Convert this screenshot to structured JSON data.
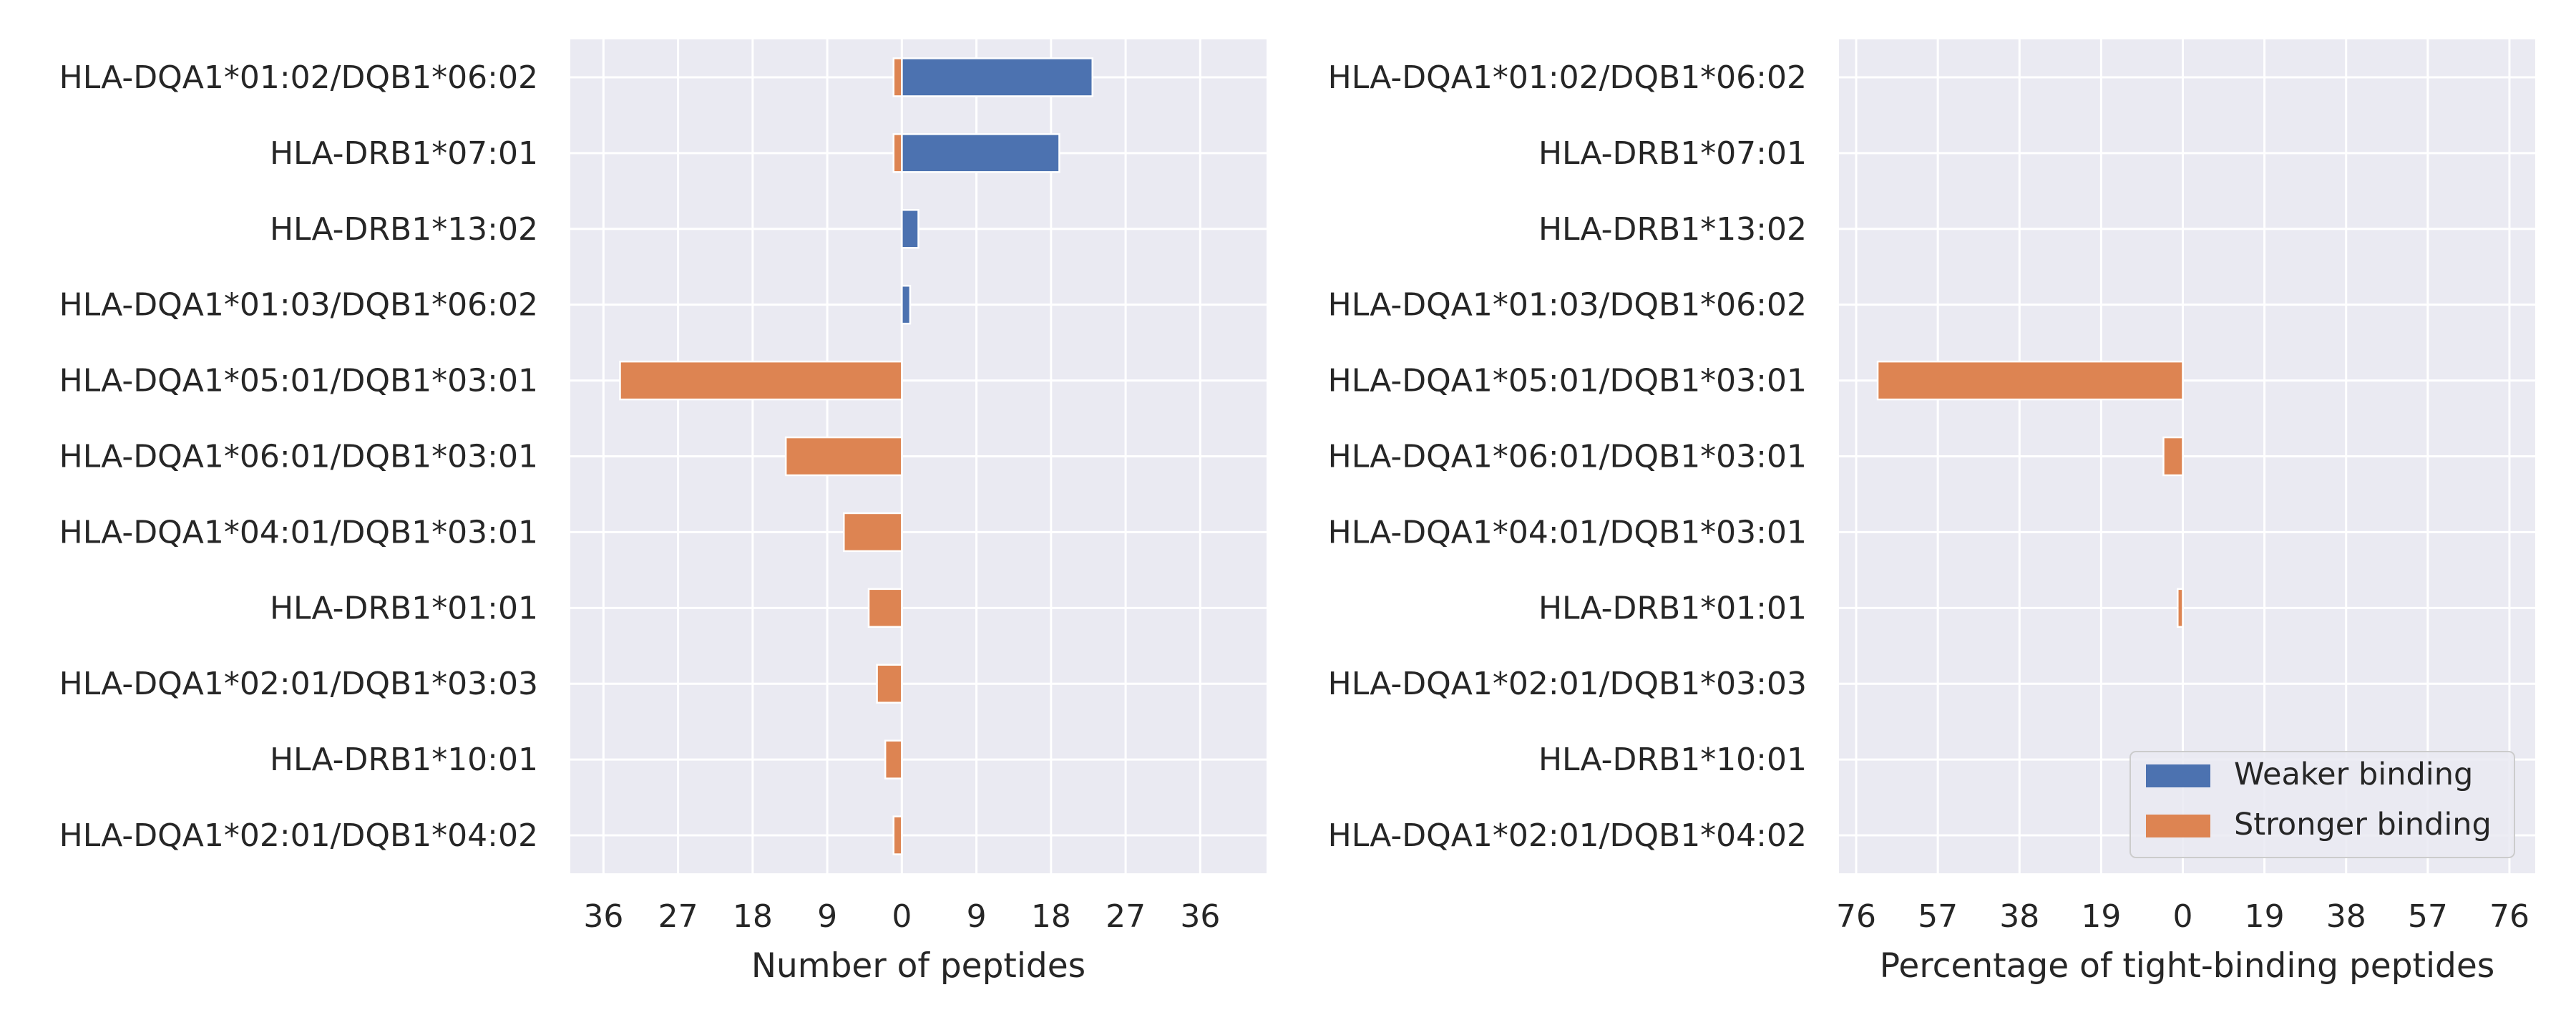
{
  "colors": {
    "weaker": "#4c72b0",
    "stronger": "#dd8452",
    "panel_bg": "#eaeaf2",
    "grid": "#ffffff",
    "text": "#262626"
  },
  "legend": {
    "placement": "lower-right",
    "items": [
      {
        "label": "Weaker binding",
        "color": "#4c72b0"
      },
      {
        "label": "Stronger binding",
        "color": "#dd8452"
      }
    ]
  },
  "chart_data": [
    {
      "type": "bar",
      "orientation": "horizontal-diverging",
      "xlabel": "Number of peptides",
      "ylabel": "",
      "xlim": [
        -40,
        44
      ],
      "xticks": [
        -36,
        -27,
        -18,
        -9,
        0,
        9,
        18,
        27,
        36
      ],
      "xtick_labels": [
        "36",
        "27",
        "18",
        "9",
        "0",
        "9",
        "18",
        "27",
        "36"
      ],
      "grid": true,
      "categories": [
        "HLA-DQA1*01:02/DQB1*06:02",
        "HLA-DRB1*07:01",
        "HLA-DRB1*13:02",
        "HLA-DQA1*01:03/DQB1*06:02",
        "HLA-DQA1*05:01/DQB1*03:01",
        "HLA-DQA1*06:01/DQB1*03:01",
        "HLA-DQA1*04:01/DQB1*03:01",
        "HLA-DRB1*01:01",
        "HLA-DQA1*02:01/DQB1*03:03",
        "HLA-DRB1*10:01",
        "HLA-DQA1*02:01/DQB1*04:02"
      ],
      "series": [
        {
          "name": "Weaker binding",
          "values": [
            23,
            19,
            2,
            1,
            0,
            0,
            0,
            0,
            0,
            0,
            0
          ]
        },
        {
          "name": "Stronger binding",
          "values": [
            -1,
            -1,
            0,
            0,
            -34,
            -14,
            -7,
            -4,
            -3,
            -2,
            -1
          ]
        }
      ]
    },
    {
      "type": "bar",
      "orientation": "horizontal-diverging",
      "xlabel": "Percentage of tight-binding peptides",
      "ylabel": "",
      "xlim": [
        -80,
        82
      ],
      "xticks": [
        -76,
        -57,
        -38,
        -19,
        0,
        19,
        38,
        57,
        76
      ],
      "xtick_labels": [
        "76",
        "57",
        "38",
        "19",
        "0",
        "19",
        "38",
        "57",
        "76"
      ],
      "grid": true,
      "categories": [
        "HLA-DQA1*01:02/DQB1*06:02",
        "HLA-DRB1*07:01",
        "HLA-DRB1*13:02",
        "HLA-DQA1*01:03/DQB1*06:02",
        "HLA-DQA1*05:01/DQB1*03:01",
        "HLA-DQA1*06:01/DQB1*03:01",
        "HLA-DQA1*04:01/DQB1*03:01",
        "HLA-DRB1*01:01",
        "HLA-DQA1*02:01/DQB1*03:03",
        "HLA-DRB1*10:01",
        "HLA-DQA1*02:01/DQB1*04:02"
      ],
      "series": [
        {
          "name": "Weaker binding",
          "values": [
            0,
            0,
            0,
            0,
            0,
            0,
            0,
            0,
            0,
            0,
            0
          ]
        },
        {
          "name": "Stronger binding",
          "values": [
            0,
            0,
            0,
            0,
            -71,
            -4.5,
            0,
            -1.2,
            0,
            0,
            0
          ]
        }
      ]
    }
  ]
}
